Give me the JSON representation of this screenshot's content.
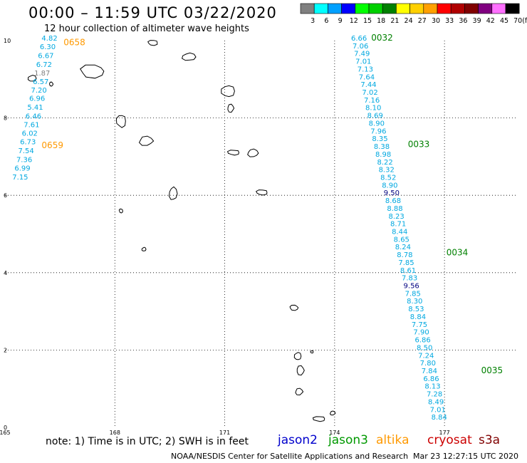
{
  "title": "00:00 – 11:59 UTC 03/22/2020",
  "subtitle": "12 hour collection of altimeter wave heights",
  "colorbar": {
    "unit": "(ft)",
    "colors": [
      "#808080",
      "#00ffff",
      "#00a0ff",
      "#0000ff",
      "#00ff00",
      "#00d000",
      "#008000",
      "#ffff00",
      "#ffd000",
      "#ffa000",
      "#ff0000",
      "#b00000",
      "#800000",
      "#800080",
      "#ff70ff",
      "#000000"
    ],
    "labels": [
      "3",
      "6",
      "9",
      "12",
      "15",
      "18",
      "21",
      "24",
      "27",
      "30",
      "33",
      "36",
      "39",
      "42",
      "45",
      "70"
    ]
  },
  "axes": {
    "xticks": [
      {
        "value": 165,
        "label": "165"
      },
      {
        "value": 168,
        "label": "168"
      },
      {
        "value": 171,
        "label": "171"
      },
      {
        "value": 174,
        "label": "174"
      },
      {
        "value": 177,
        "label": "177"
      }
    ],
    "yticks": [
      {
        "value": 0,
        "label": "0"
      },
      {
        "value": 2,
        "label": "2"
      },
      {
        "value": 4,
        "label": "4"
      },
      {
        "value": 6,
        "label": "6"
      },
      {
        "value": 8,
        "label": "8"
      },
      {
        "value": 10,
        "label": "10"
      }
    ]
  },
  "tracks": [
    {
      "satellite": "jason3",
      "time_labels": [
        {
          "text": "0658",
          "lon": 166.6,
          "lat": 9.88,
          "color": "#ff9900"
        },
        {
          "text": "0659",
          "lon": 166.0,
          "lat": 7.22,
          "color": "#ff9900"
        }
      ],
      "points": [
        {
          "lon": 166.0,
          "lat": 10.0,
          "value": "4.82"
        },
        {
          "lon": 165.95,
          "lat": 9.78,
          "value": "6.30"
        },
        {
          "lon": 165.9,
          "lat": 9.55,
          "value": "6.67"
        },
        {
          "lon": 165.85,
          "lat": 9.32,
          "value": "6.72"
        },
        {
          "lon": 165.8,
          "lat": 9.1,
          "value": "1.87",
          "color": "#808080"
        },
        {
          "lon": 165.76,
          "lat": 8.88,
          "value": "6.57"
        },
        {
          "lon": 165.71,
          "lat": 8.66,
          "value": "7.20"
        },
        {
          "lon": 165.66,
          "lat": 8.44,
          "value": "6.96"
        },
        {
          "lon": 165.61,
          "lat": 8.21,
          "value": "5.41"
        },
        {
          "lon": 165.56,
          "lat": 7.98,
          "value": "6.46"
        },
        {
          "lon": 165.51,
          "lat": 7.76,
          "value": "7.61"
        },
        {
          "lon": 165.46,
          "lat": 7.54,
          "value": "6.02"
        },
        {
          "lon": 165.41,
          "lat": 7.32,
          "value": "6.73"
        },
        {
          "lon": 165.36,
          "lat": 7.09,
          "value": "7.54"
        },
        {
          "lon": 165.31,
          "lat": 6.86,
          "value": "7.36"
        },
        {
          "lon": 165.26,
          "lat": 6.64,
          "value": "6.99"
        },
        {
          "lon": 165.2,
          "lat": 6.41,
          "value": "7.15"
        }
      ]
    },
    {
      "satellite": "jason3",
      "time_labels": [
        {
          "text": "0032",
          "lon": 175.0,
          "lat": 10.0,
          "color": "#008000"
        },
        {
          "text": "0033",
          "lon": 176.0,
          "lat": 7.25,
          "color": "#008000"
        },
        {
          "text": "0034",
          "lon": 177.05,
          "lat": 4.45,
          "color": "#008000"
        },
        {
          "text": "0035",
          "lon": 178.0,
          "lat": 1.4,
          "color": "#008000"
        }
      ],
      "points": [
        {
          "lon": 174.45,
          "lat": 10.0,
          "value": "6.66"
        },
        {
          "lon": 174.49,
          "lat": 9.8,
          "value": "7.06"
        },
        {
          "lon": 174.53,
          "lat": 9.6,
          "value": "7.49"
        },
        {
          "lon": 174.57,
          "lat": 9.4,
          "value": "7.01"
        },
        {
          "lon": 174.62,
          "lat": 9.2,
          "value": "7.13"
        },
        {
          "lon": 174.66,
          "lat": 9.0,
          "value": "7.64"
        },
        {
          "lon": 174.71,
          "lat": 8.8,
          "value": "7.44"
        },
        {
          "lon": 174.75,
          "lat": 8.6,
          "value": "7.02"
        },
        {
          "lon": 174.8,
          "lat": 8.4,
          "value": "7.16"
        },
        {
          "lon": 174.84,
          "lat": 8.2,
          "value": "8.10"
        },
        {
          "lon": 174.89,
          "lat": 8.0,
          "value": "8.69"
        },
        {
          "lon": 174.93,
          "lat": 7.8,
          "value": "8.90"
        },
        {
          "lon": 174.98,
          "lat": 7.6,
          "value": "7.96"
        },
        {
          "lon": 175.02,
          "lat": 7.4,
          "value": "8.35"
        },
        {
          "lon": 175.07,
          "lat": 7.2,
          "value": "8.38"
        },
        {
          "lon": 175.11,
          "lat": 7.0,
          "value": "8.98"
        },
        {
          "lon": 175.16,
          "lat": 6.8,
          "value": "8.22"
        },
        {
          "lon": 175.2,
          "lat": 6.6,
          "value": "8.32"
        },
        {
          "lon": 175.25,
          "lat": 6.4,
          "value": "8.52"
        },
        {
          "lon": 175.29,
          "lat": 6.2,
          "value": "8.90"
        },
        {
          "lon": 175.34,
          "lat": 6.0,
          "value": "9.50",
          "color": "#000080"
        },
        {
          "lon": 175.38,
          "lat": 5.8,
          "value": "8.68"
        },
        {
          "lon": 175.43,
          "lat": 5.6,
          "value": "8.88"
        },
        {
          "lon": 175.47,
          "lat": 5.4,
          "value": "8.23"
        },
        {
          "lon": 175.52,
          "lat": 5.2,
          "value": "8.71"
        },
        {
          "lon": 175.56,
          "lat": 5.0,
          "value": "8.44"
        },
        {
          "lon": 175.61,
          "lat": 4.8,
          "value": "8.65"
        },
        {
          "lon": 175.65,
          "lat": 4.6,
          "value": "8.24"
        },
        {
          "lon": 175.7,
          "lat": 4.4,
          "value": "8.78"
        },
        {
          "lon": 175.74,
          "lat": 4.2,
          "value": "7.85"
        },
        {
          "lon": 175.79,
          "lat": 4.0,
          "value": "8.61"
        },
        {
          "lon": 175.83,
          "lat": 3.8,
          "value": "7.83"
        },
        {
          "lon": 175.88,
          "lat": 3.6,
          "value": "9.56",
          "color": "#000080"
        },
        {
          "lon": 175.92,
          "lat": 3.4,
          "value": "7.85"
        },
        {
          "lon": 175.97,
          "lat": 3.2,
          "value": "8.30"
        },
        {
          "lon": 176.01,
          "lat": 3.0,
          "value": "8.53"
        },
        {
          "lon": 176.06,
          "lat": 2.8,
          "value": "8.84"
        },
        {
          "lon": 176.1,
          "lat": 2.6,
          "value": "7.75"
        },
        {
          "lon": 176.15,
          "lat": 2.4,
          "value": "7.90"
        },
        {
          "lon": 176.19,
          "lat": 2.2,
          "value": "6.86"
        },
        {
          "lon": 176.24,
          "lat": 2.0,
          "value": "8.50"
        },
        {
          "lon": 176.28,
          "lat": 1.8,
          "value": "7.24"
        },
        {
          "lon": 176.33,
          "lat": 1.6,
          "value": "7.80"
        },
        {
          "lon": 176.37,
          "lat": 1.4,
          "value": "7.84"
        },
        {
          "lon": 176.42,
          "lat": 1.2,
          "value": "6.86"
        },
        {
          "lon": 176.46,
          "lat": 1.0,
          "value": "8.13"
        },
        {
          "lon": 176.51,
          "lat": 0.8,
          "value": "7.28"
        },
        {
          "lon": 176.55,
          "lat": 0.6,
          "value": "8.49"
        },
        {
          "lon": 176.6,
          "lat": 0.4,
          "value": "7.01"
        },
        {
          "lon": 176.64,
          "lat": 0.2,
          "value": "8.84"
        }
      ]
    }
  ],
  "note": "note: 1) Time is in UTC; 2) SWH is in feet",
  "satellites": [
    {
      "name": "jason2",
      "color": "#0000cc"
    },
    {
      "name": "jason3",
      "color": "#009900"
    },
    {
      "name": "altika",
      "color": "#ff9900"
    },
    {
      "name": "cryosat",
      "color": "#cc0000"
    },
    {
      "name": "s3a",
      "color": "#800000"
    }
  ],
  "credit": "NOAA/NESDIS Center for Satellite Applications and Research",
  "timestamp": "Mar 23 12:27:15 UTC 2020"
}
